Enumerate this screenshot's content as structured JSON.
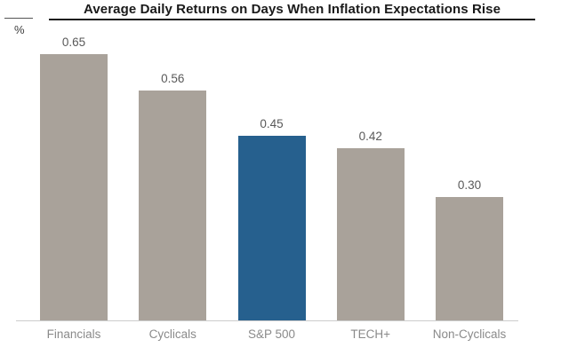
{
  "title": "Average Daily Returns on Days When Inflation Expectations Rise",
  "unit_label": "%",
  "chart_data": {
    "type": "bar",
    "title": "Average Daily Returns on Days When Inflation Expectations Rise",
    "categories": [
      "Financials",
      "Cyclicals",
      "S&P 500",
      "TECH+",
      "Non-Cyclicals"
    ],
    "values": [
      0.65,
      0.56,
      0.45,
      0.42,
      0.3
    ],
    "value_labels": [
      "0.65",
      "0.56",
      "0.45",
      "0.42",
      "0.30"
    ],
    "highlight_index": 2,
    "xlabel": "",
    "ylabel": "%",
    "ylim": [
      0,
      0.78
    ],
    "grid": false,
    "legend": "none",
    "colors": {
      "bar_default": "#a9a29a",
      "bar_highlight": "#26608e",
      "title_text": "#1a1a1a",
      "value_label_text": "#595959",
      "category_label_text": "#8a8a8a",
      "axis_line": "#cccccc",
      "background": "#ffffff"
    }
  }
}
